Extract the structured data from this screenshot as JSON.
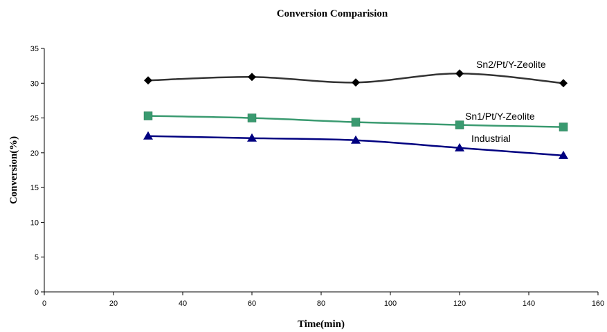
{
  "chart_data": {
    "type": "line",
    "title": "Conversion Comparision",
    "xlabel": "Time(min)",
    "ylabel": "Conversion(%)",
    "xlim": [
      0,
      160
    ],
    "ylim": [
      0,
      35
    ],
    "x_ticks": [
      0,
      20,
      40,
      60,
      80,
      100,
      120,
      140,
      160
    ],
    "y_ticks": [
      0,
      5,
      10,
      15,
      20,
      25,
      30,
      35
    ],
    "grid": false,
    "legend": "none",
    "series": [
      {
        "name": "Sn2/Pt/Y-Zeolite",
        "marker": "diamond",
        "line_color": "#333333",
        "marker_color": "#000000",
        "x": [
          30,
          60,
          90,
          120,
          150
        ],
        "y": [
          30.4,
          30.9,
          30.1,
          31.4,
          30.0
        ]
      },
      {
        "name": "Sn1/Pt/Y-Zeolite",
        "marker": "square",
        "line_color": "#3a9a70",
        "marker_color": "#3a9a70",
        "x": [
          30,
          60,
          90,
          120,
          150
        ],
        "y": [
          25.3,
          25.0,
          24.4,
          24.0,
          23.7
        ]
      },
      {
        "name": "Industrial",
        "marker": "triangle",
        "line_color": "#000080",
        "marker_color": "#000080",
        "x": [
          30,
          60,
          90,
          120,
          150
        ],
        "y": [
          22.4,
          22.1,
          21.8,
          20.7,
          19.6
        ]
      }
    ]
  }
}
